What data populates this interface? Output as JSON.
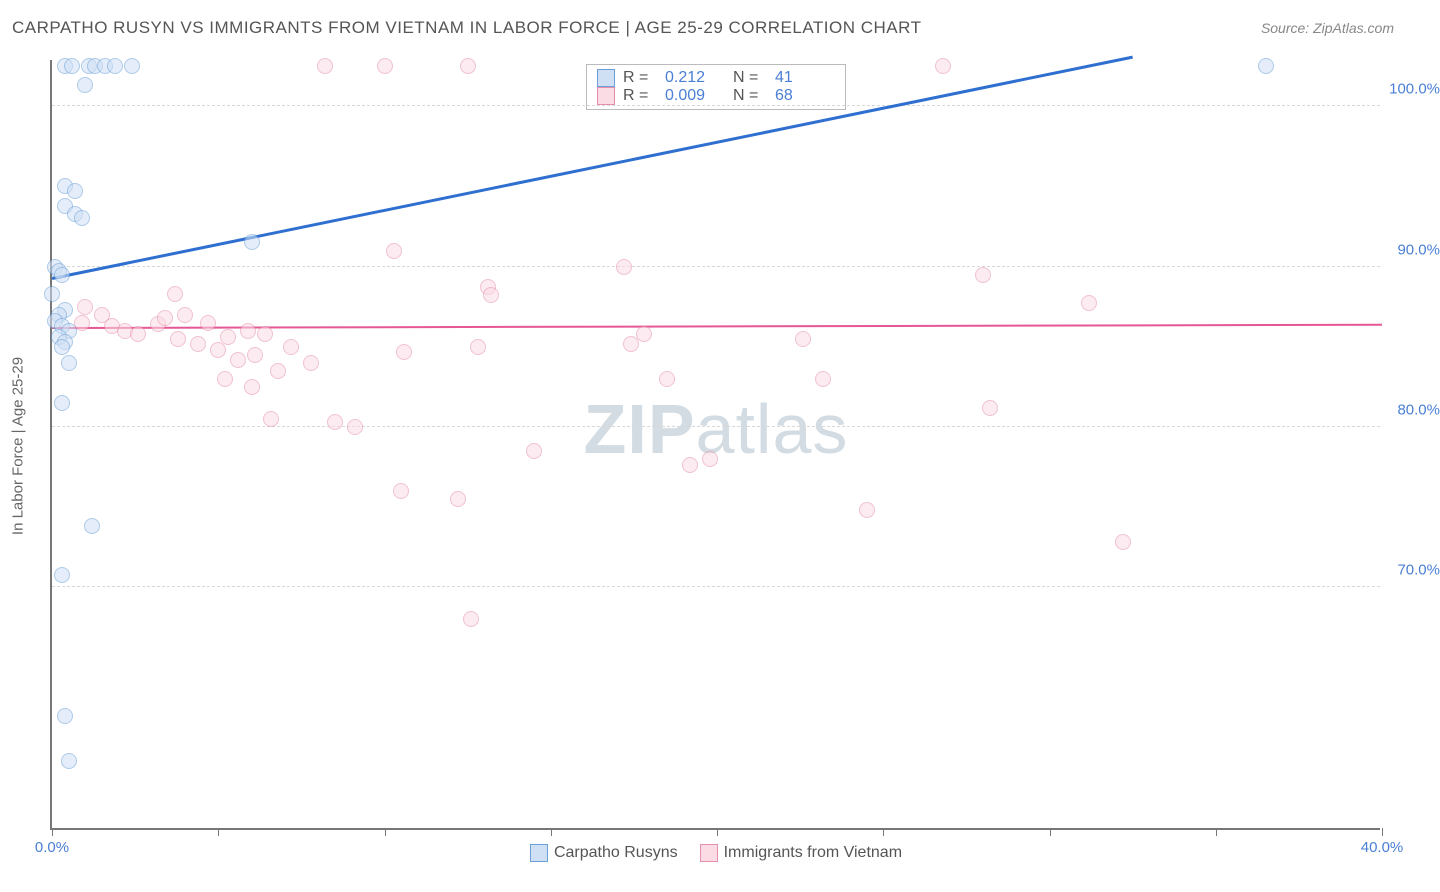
{
  "title": "CARPATHO RUSYN VS IMMIGRANTS FROM VIETNAM IN LABOR FORCE | AGE 25-29 CORRELATION CHART",
  "source": "Source: ZipAtlas.com",
  "yaxis_title": "In Labor Force | Age 25-29",
  "watermark_bold": "ZIP",
  "watermark_rest": "atlas",
  "chart": {
    "type": "scatter",
    "xlim": [
      0,
      40
    ],
    "ylim": [
      55,
      103
    ],
    "xticks": [
      0,
      5,
      10,
      15,
      20,
      25,
      30,
      35,
      40
    ],
    "xticklabels": {
      "0": "0.0%",
      "40": "40.0%"
    },
    "yticks": [
      70,
      80,
      90,
      100
    ],
    "yticklabels": {
      "70": "70.0%",
      "80": "80.0%",
      "90": "90.0%",
      "100": "100.0%"
    },
    "grid_color": "#d8d8d8",
    "background": "#ffffff",
    "marker_radius": 8,
    "marker_stroke_width": 1.5,
    "series": [
      {
        "name": "Carpatho Rusyns",
        "fill": "#cfe0f5",
        "stroke": "#6a9fd8",
        "fill_opacity": 0.55,
        "trend_color": "#2e6fd0",
        "trend_width": 2.5,
        "trend_start": [
          0,
          89.2
        ],
        "trend_end": [
          32.5,
          103
        ],
        "R": "0.212",
        "N": "41",
        "points": [
          [
            0.4,
            102.5
          ],
          [
            0.6,
            102.5
          ],
          [
            1.1,
            102.5
          ],
          [
            1.3,
            102.5
          ],
          [
            1.6,
            102.5
          ],
          [
            1.9,
            102.5
          ],
          [
            2.4,
            102.5
          ],
          [
            1.0,
            101.3
          ],
          [
            0.4,
            95.0
          ],
          [
            0.7,
            94.7
          ],
          [
            0.4,
            93.8
          ],
          [
            0.7,
            93.3
          ],
          [
            0.9,
            93.0
          ],
          [
            0.1,
            90.0
          ],
          [
            0.2,
            89.7
          ],
          [
            0.3,
            89.5
          ],
          [
            0.0,
            88.3
          ],
          [
            0.4,
            87.3
          ],
          [
            0.2,
            87.0
          ],
          [
            0.1,
            86.6
          ],
          [
            0.3,
            86.3
          ],
          [
            0.5,
            86.0
          ],
          [
            0.2,
            85.6
          ],
          [
            0.4,
            85.3
          ],
          [
            0.3,
            85.0
          ],
          [
            0.5,
            84.0
          ],
          [
            0.3,
            81.5
          ],
          [
            1.2,
            73.8
          ],
          [
            0.3,
            70.8
          ],
          [
            0.4,
            62.0
          ],
          [
            0.5,
            59.2
          ],
          [
            6.0,
            91.5
          ],
          [
            36.5,
            102.5
          ]
        ]
      },
      {
        "name": "Immigrants from Vietnam",
        "fill": "#fbdbe4",
        "stroke": "#e58fad",
        "fill_opacity": 0.55,
        "trend_color": "#e55795",
        "trend_width": 2,
        "trend_start": [
          0,
          86.1
        ],
        "trend_end": [
          40,
          86.3
        ],
        "R": "0.009",
        "N": "68",
        "points": [
          [
            8.2,
            102.5
          ],
          [
            10.0,
            102.5
          ],
          [
            12.5,
            102.5
          ],
          [
            26.8,
            102.5
          ],
          [
            1.0,
            87.5
          ],
          [
            1.5,
            87.0
          ],
          [
            0.9,
            86.5
          ],
          [
            1.8,
            86.3
          ],
          [
            2.2,
            86.0
          ],
          [
            2.6,
            85.8
          ],
          [
            3.2,
            86.4
          ],
          [
            3.4,
            86.8
          ],
          [
            3.8,
            85.5
          ],
          [
            4.0,
            87.0
          ],
          [
            4.4,
            85.2
          ],
          [
            4.7,
            86.5
          ],
          [
            5.0,
            84.8
          ],
          [
            5.3,
            85.6
          ],
          [
            5.6,
            84.2
          ],
          [
            5.9,
            86.0
          ],
          [
            3.7,
            88.3
          ],
          [
            6.1,
            84.5
          ],
          [
            6.4,
            85.8
          ],
          [
            6.8,
            83.5
          ],
          [
            7.2,
            85.0
          ],
          [
            7.8,
            84.0
          ],
          [
            6.0,
            82.5
          ],
          [
            6.6,
            80.5
          ],
          [
            8.5,
            80.3
          ],
          [
            9.1,
            80.0
          ],
          [
            5.2,
            83.0
          ],
          [
            10.3,
            91.0
          ],
          [
            10.6,
            84.7
          ],
          [
            12.8,
            85.0
          ],
          [
            13.1,
            88.7
          ],
          [
            13.2,
            88.2
          ],
          [
            10.5,
            76.0
          ],
          [
            12.2,
            75.5
          ],
          [
            12.6,
            68.0
          ],
          [
            14.5,
            78.5
          ],
          [
            17.2,
            90.0
          ],
          [
            17.4,
            85.2
          ],
          [
            17.8,
            85.8
          ],
          [
            18.5,
            83.0
          ],
          [
            19.8,
            78.0
          ],
          [
            19.2,
            77.6
          ],
          [
            22.6,
            85.5
          ],
          [
            23.2,
            83.0
          ],
          [
            24.5,
            74.8
          ],
          [
            28.0,
            89.5
          ],
          [
            28.2,
            81.2
          ],
          [
            31.2,
            87.7
          ],
          [
            32.2,
            72.8
          ]
        ]
      }
    ]
  },
  "legend_top": {
    "rows": [
      {
        "sw_fill": "#cfe0f5",
        "sw_stroke": "#6a9fd8",
        "r_lbl": "R  =",
        "r_val": "0.212",
        "n_lbl": "N  =",
        "n_val": "41"
      },
      {
        "sw_fill": "#fbdbe4",
        "sw_stroke": "#e58fad",
        "r_lbl": "R  =",
        "r_val": "0.009",
        "n_lbl": "N  =",
        "n_val": "68"
      }
    ]
  },
  "legend_bottom": {
    "items": [
      {
        "sw_fill": "#cfe0f5",
        "sw_stroke": "#6a9fd8",
        "label": "Carpatho Rusyns"
      },
      {
        "sw_fill": "#fbdbe4",
        "sw_stroke": "#e58fad",
        "label": "Immigrants from Vietnam"
      }
    ]
  }
}
